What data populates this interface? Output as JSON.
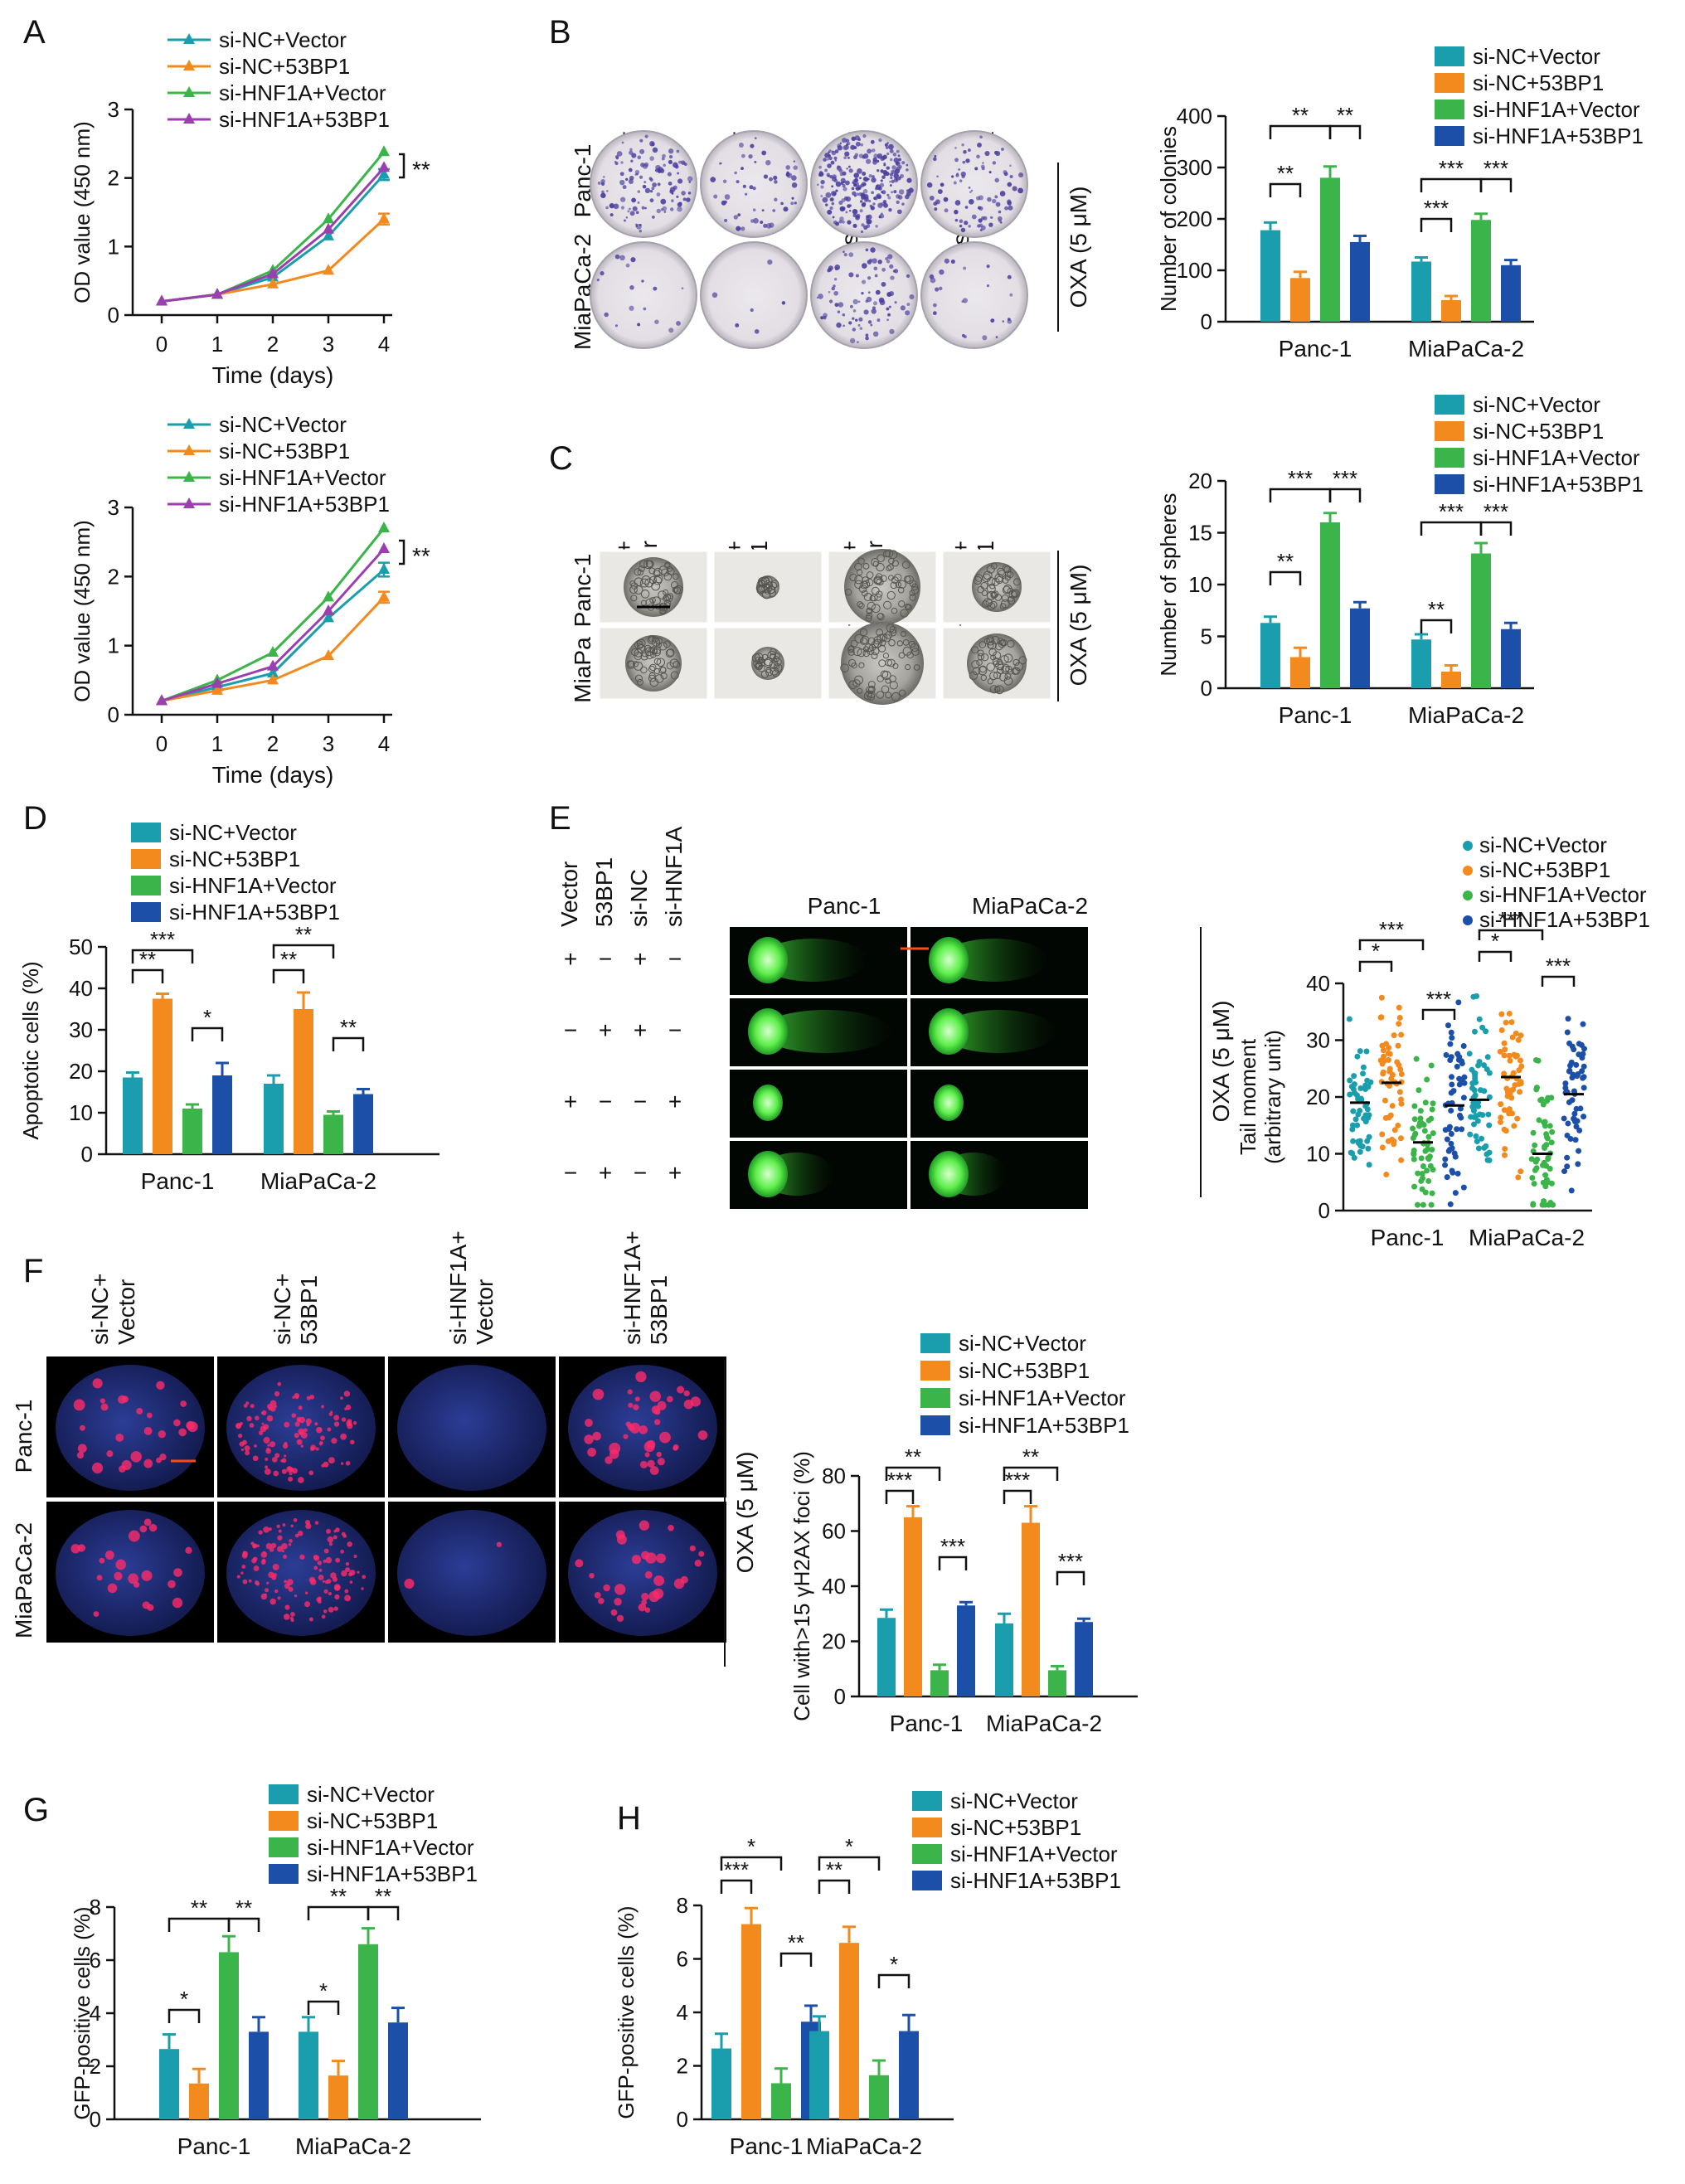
{
  "colors": {
    "nc_vector": "#1a9ead",
    "nc_53bp1": "#f28a1e",
    "hnf1a_vector": "#3bb54a",
    "hnf1a_53bp1": "#1c4fa8",
    "hnf1a_53bp1_line": "#9b3fb0",
    "ink": "#111111",
    "gel": "#e4e1e5",
    "colony": "#4b3f9e",
    "comet": "#6cff5f",
    "nucleus": "#20307a",
    "foci": "#ff2a6a"
  },
  "legend_labels": [
    "si-NC+Vector",
    "si-NC+53BP1",
    "si-HNF1A+Vector",
    "si-HNF1A+53BP1"
  ],
  "cell_lines": [
    "Panc-1",
    "MiaPaCa-2"
  ],
  "treatment": "OXA (5 μM)",
  "sig": {
    "two": "**",
    "three": "***",
    "one": "*"
  },
  "panels": {
    "a": "A",
    "b": "B",
    "c": "C",
    "d": "D",
    "e": "E",
    "f": "F",
    "g": "G",
    "h": "H"
  },
  "image_headers": [
    "si-NC+\nVector",
    "si-NC+\n53BP1",
    "si-HNF1A+\nVector",
    "si-HNF1A+\n53BP1"
  ],
  "row_labels_b": [
    "Panc-1",
    "MiaPaCa-2"
  ],
  "row_labels_c": [
    "Panc-1",
    "MiaPa\nCa-2"
  ],
  "row_labels_f": [
    "Panc-1",
    "MiaPaCa-2"
  ],
  "comet": {
    "columns": [
      "Panc-1",
      "MiaPaCa-2"
    ],
    "row_headers": [
      "Vector",
      "53BP1",
      "si-NC",
      "si-HNF1A"
    ],
    "signs": [
      [
        "+",
        "−",
        "+",
        "−"
      ],
      [
        "−",
        "+",
        "+",
        "−"
      ],
      [
        "+",
        "−",
        "−",
        "+"
      ],
      [
        "−",
        "+",
        "−",
        "+"
      ]
    ]
  },
  "chart_data": [
    {
      "id": "A1",
      "type": "line",
      "xlabel": "Time (days)",
      "ylabel": "OD value (450 nm)",
      "x": [
        0,
        1,
        2,
        3,
        4
      ],
      "ylim": [
        0,
        3
      ],
      "yticks": [
        0,
        1,
        2,
        3
      ],
      "series": [
        {
          "name": "si-NC+Vector",
          "values": [
            0.2,
            0.3,
            0.55,
            1.15,
            2.05
          ],
          "err": [
            0,
            0,
            0,
            0,
            0.08
          ]
        },
        {
          "name": "si-NC+53BP1",
          "values": [
            0.2,
            0.3,
            0.45,
            0.65,
            1.4
          ],
          "err": [
            0,
            0,
            0,
            0,
            0.08
          ]
        },
        {
          "name": "si-HNF1A+Vector",
          "values": [
            0.2,
            0.3,
            0.65,
            1.4,
            2.38
          ],
          "err": [
            0,
            0,
            0,
            0,
            0
          ]
        },
        {
          "name": "si-HNF1A+53BP1",
          "values": [
            0.2,
            0.3,
            0.6,
            1.25,
            2.15
          ],
          "err": [
            0,
            0,
            0,
            0,
            0
          ]
        }
      ]
    },
    {
      "id": "A2",
      "type": "line",
      "xlabel": "Time (days)",
      "ylabel": "OD value (450 nm)",
      "x": [
        0,
        1,
        2,
        3,
        4
      ],
      "ylim": [
        0,
        3
      ],
      "yticks": [
        0,
        1,
        2,
        3
      ],
      "series": [
        {
          "name": "si-NC+Vector",
          "values": [
            0.2,
            0.4,
            0.6,
            1.4,
            2.1
          ],
          "err": [
            0,
            0,
            0,
            0,
            0.1
          ]
        },
        {
          "name": "si-NC+53BP1",
          "values": [
            0.2,
            0.35,
            0.5,
            0.85,
            1.7
          ],
          "err": [
            0,
            0,
            0,
            0,
            0.08
          ]
        },
        {
          "name": "si-HNF1A+Vector",
          "values": [
            0.2,
            0.5,
            0.9,
            1.7,
            2.7
          ],
          "err": [
            0,
            0,
            0,
            0,
            0
          ]
        },
        {
          "name": "si-HNF1A+53BP1",
          "values": [
            0.2,
            0.45,
            0.7,
            1.5,
            2.4
          ],
          "err": [
            0,
            0,
            0,
            0,
            0
          ]
        }
      ]
    },
    {
      "id": "B",
      "type": "bar",
      "ylabel": "Number of colonies",
      "categories": [
        "Panc-1",
        "MiaPaCa-2"
      ],
      "ylim": [
        0,
        400
      ],
      "yticks": [
        0,
        100,
        200,
        300,
        400
      ],
      "series": [
        {
          "name": "si-NC+Vector",
          "values": [
            178,
            117
          ],
          "err": [
            15,
            8
          ]
        },
        {
          "name": "si-NC+53BP1",
          "values": [
            85,
            42
          ],
          "err": [
            12,
            8
          ]
        },
        {
          "name": "si-HNF1A+Vector",
          "values": [
            280,
            198
          ],
          "err": [
            22,
            12
          ]
        },
        {
          "name": "si-HNF1A+53BP1",
          "values": [
            155,
            110
          ],
          "err": [
            12,
            10
          ]
        }
      ]
    },
    {
      "id": "C",
      "type": "bar",
      "ylabel": "Number of spheres",
      "categories": [
        "Panc-1",
        "MiaPaCa-2"
      ],
      "ylim": [
        0,
        20
      ],
      "yticks": [
        0,
        5,
        10,
        15,
        20
      ],
      "series": [
        {
          "name": "si-NC+Vector",
          "values": [
            6.3,
            4.7
          ],
          "err": [
            0.6,
            0.5
          ]
        },
        {
          "name": "si-NC+53BP1",
          "values": [
            3,
            1.6
          ],
          "err": [
            0.9,
            0.6
          ]
        },
        {
          "name": "si-HNF1A+Vector",
          "values": [
            16,
            13
          ],
          "err": [
            0.9,
            1
          ]
        },
        {
          "name": "si-HNF1A+53BP1",
          "values": [
            7.7,
            5.7
          ],
          "err": [
            0.6,
            0.6
          ]
        }
      ]
    },
    {
      "id": "D",
      "type": "bar",
      "ylabel": "Apoptotic cells (%)",
      "categories": [
        "Panc-1",
        "MiaPaCa-2"
      ],
      "ylim": [
        0,
        50
      ],
      "yticks": [
        0,
        10,
        20,
        30,
        40,
        50
      ],
      "series": [
        {
          "name": "si-NC+Vector",
          "values": [
            18.5,
            17
          ],
          "err": [
            1.2,
            2
          ]
        },
        {
          "name": "si-NC+53BP1",
          "values": [
            37.5,
            35
          ],
          "err": [
            1.2,
            4
          ]
        },
        {
          "name": "si-HNF1A+Vector",
          "values": [
            11,
            9.5
          ],
          "err": [
            1,
            0.8
          ]
        },
        {
          "name": "si-HNF1A+53BP1",
          "values": [
            19,
            14.5
          ],
          "err": [
            3,
            1.2
          ]
        }
      ]
    },
    {
      "id": "E",
      "type": "scatter",
      "ylabel": "Tail moment\n(arbitrary unit)",
      "categories": [
        "Panc-1",
        "MiaPaCa-2"
      ],
      "ylim": [
        0,
        40
      ],
      "yticks": [
        0,
        10,
        20,
        30,
        40
      ],
      "series": [
        {
          "name": "si-NC+Vector",
          "values": [
            19,
            19.5
          ]
        },
        {
          "name": "si-NC+53BP1",
          "values": [
            22.5,
            23.5
          ]
        },
        {
          "name": "si-HNF1A+Vector",
          "values": [
            12,
            10
          ]
        },
        {
          "name": "si-HNF1A+53BP1",
          "values": [
            18.5,
            20.5
          ]
        }
      ]
    },
    {
      "id": "F",
      "type": "bar",
      "ylabel": "Cell with>15 γH2AX foci (%)",
      "categories": [
        "Panc-1",
        "MiaPaCa-2"
      ],
      "ylim": [
        0,
        80
      ],
      "yticks": [
        0,
        20,
        40,
        60,
        80
      ],
      "series": [
        {
          "name": "si-NC+Vector",
          "values": [
            28.5,
            26.5
          ],
          "err": [
            3,
            3.5
          ]
        },
        {
          "name": "si-NC+53BP1",
          "values": [
            65,
            63
          ],
          "err": [
            4,
            6
          ]
        },
        {
          "name": "si-HNF1A+Vector",
          "values": [
            9.5,
            9.5
          ],
          "err": [
            2,
            1.5
          ]
        },
        {
          "name": "si-HNF1A+53BP1",
          "values": [
            33,
            27
          ],
          "err": [
            1.2,
            1.2
          ]
        }
      ]
    },
    {
      "id": "G",
      "type": "bar",
      "ylabel": "GFP-positive cells (%)",
      "categories": [
        "Panc-1",
        "MiaPaCa-2"
      ],
      "ylim": [
        0,
        8
      ],
      "yticks": [
        0,
        2,
        4,
        6,
        8
      ],
      "series": [
        {
          "name": "si-NC+Vector",
          "values": [
            2.65,
            3.3
          ],
          "err": [
            0.55,
            0.55
          ]
        },
        {
          "name": "si-NC+53BP1",
          "values": [
            1.35,
            1.65
          ],
          "err": [
            0.55,
            0.55
          ]
        },
        {
          "name": "si-HNF1A+Vector",
          "values": [
            6.3,
            6.6
          ],
          "err": [
            0.6,
            0.6
          ]
        },
        {
          "name": "si-HNF1A+53BP1",
          "values": [
            3.3,
            3.65
          ],
          "err": [
            0.55,
            0.55
          ]
        }
      ]
    },
    {
      "id": "H",
      "type": "bar",
      "ylabel": "GFP-positive cells (%)",
      "categories": [
        "Panc-1",
        "MiaPaCa-2"
      ],
      "ylim": [
        0,
        8
      ],
      "yticks": [
        0,
        2,
        4,
        6,
        8
      ],
      "series": [
        {
          "name": "si-NC+Vector",
          "values": [
            2.65,
            3.3
          ],
          "err": [
            0.55,
            0.55
          ]
        },
        {
          "name": "si-NC+53BP1",
          "values": [
            7.3,
            6.6
          ],
          "err": [
            0.6,
            0.6
          ]
        },
        {
          "name": "si-HNF1A+Vector",
          "values": [
            1.35,
            1.65
          ],
          "err": [
            0.55,
            0.55
          ]
        },
        {
          "name": "si-HNF1A+53BP1",
          "values": [
            3.65,
            3.3
          ],
          "err": [
            0.6,
            0.6
          ]
        }
      ]
    }
  ]
}
